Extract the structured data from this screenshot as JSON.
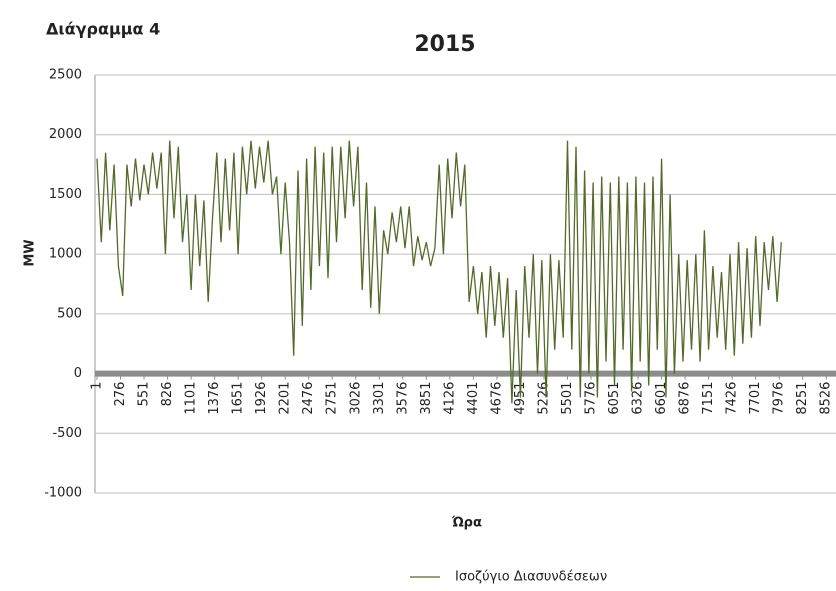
{
  "heading": "Διάγραμμα 4",
  "chart_data": {
    "type": "line",
    "title": "2015",
    "x_label": "Ώρα",
    "y_label": "MW",
    "x": [
      1,
      51,
      101,
      151,
      201,
      251,
      301,
      351,
      401,
      451,
      501,
      551,
      601,
      651,
      701,
      751,
      801,
      851,
      901,
      951,
      1001,
      1051,
      1101,
      1151,
      1201,
      1251,
      1301,
      1351,
      1401,
      1451,
      1501,
      1551,
      1601,
      1651,
      1701,
      1751,
      1801,
      1851,
      1901,
      1951,
      2001,
      2051,
      2101,
      2151,
      2201,
      2251,
      2301,
      2351,
      2401,
      2451,
      2501,
      2551,
      2601,
      2651,
      2701,
      2751,
      2801,
      2851,
      2901,
      2951,
      3001,
      3051,
      3101,
      3151,
      3201,
      3251,
      3301,
      3351,
      3401,
      3451,
      3501,
      3551,
      3601,
      3651,
      3701,
      3751,
      3801,
      3851,
      3901,
      3951,
      4001,
      4051,
      4101,
      4151,
      4201,
      4251,
      4301,
      4351,
      4401,
      4451,
      4501,
      4551,
      4601,
      4651,
      4701,
      4751,
      4801,
      4851,
      4901,
      4951,
      5001,
      5051,
      5101,
      5151,
      5201,
      5251,
      5301,
      5351,
      5401,
      5451,
      5501,
      5551,
      5601,
      5651,
      5701,
      5751,
      5801,
      5851,
      5901,
      5951,
      6001,
      6051,
      6101,
      6151,
      6201,
      6251,
      6301,
      6351,
      6401,
      6451,
      6501,
      6551,
      6601,
      6651,
      6701,
      6751,
      6801,
      6851,
      6901,
      6951,
      7001,
      7051,
      7101,
      7151,
      7201,
      7251,
      7301,
      7351,
      7401,
      7451,
      7501,
      7551,
      7601,
      7651,
      7701,
      7751,
      7801,
      7851,
      7901,
      7951,
      8001
    ],
    "series": [
      {
        "name": "Ισοζύγιο Διασυνδέσεων",
        "color": "#546a2a",
        "values": [
          1800,
          1100,
          1850,
          1200,
          1750,
          900,
          650,
          1750,
          1400,
          1800,
          1450,
          1750,
          1500,
          1850,
          1550,
          1850,
          1000,
          1950,
          1300,
          1900,
          1100,
          1500,
          700,
          1500,
          900,
          1450,
          600,
          1300,
          1850,
          1100,
          1800,
          1200,
          1850,
          1000,
          1900,
          1500,
          1950,
          1550,
          1900,
          1600,
          1950,
          1500,
          1650,
          1000,
          1600,
          1100,
          150,
          1700,
          400,
          1800,
          700,
          1900,
          900,
          1850,
          800,
          1900,
          1100,
          1900,
          1300,
          1950,
          1400,
          1900,
          700,
          1600,
          550,
          1400,
          500,
          1200,
          1000,
          1350,
          1100,
          1400,
          1050,
          1400,
          900,
          1150,
          950,
          1100,
          900,
          1050,
          1750,
          1000,
          1800,
          1300,
          1850,
          1400,
          1750,
          600,
          900,
          500,
          850,
          300,
          900,
          400,
          850,
          300,
          800,
          -250,
          700,
          -200,
          900,
          300,
          1000,
          0,
          950,
          -200,
          1000,
          200,
          950,
          300,
          1950,
          200,
          1900,
          -200,
          1700,
          0,
          1600,
          -200,
          1650,
          100,
          1600,
          -100,
          1650,
          200,
          1600,
          -150,
          1650,
          100,
          1600,
          -100,
          1650,
          200,
          1800,
          -200,
          1500,
          0,
          1000,
          100,
          950,
          200,
          1000,
          100,
          1200,
          200,
          900,
          300,
          850,
          200,
          1000,
          150,
          1100,
          250,
          1050,
          300,
          1150,
          400,
          1100,
          700,
          1150,
          600,
          1100
        ]
      }
    ],
    "xlim": [
      1,
      8640
    ],
    "xticks": [
      1,
      276,
      551,
      826,
      1101,
      1376,
      1651,
      1926,
      2201,
      2476,
      2751,
      3026,
      3301,
      3576,
      3851,
      4126,
      4401,
      4676,
      4951,
      5226,
      5501,
      5776,
      6051,
      6326,
      6601,
      6876,
      7151,
      7426,
      7701,
      7976,
      8251,
      8526
    ],
    "ylim": [
      -1000,
      2500
    ],
    "yticks": [
      -1000,
      -500,
      0,
      500,
      1000,
      1500,
      2000,
      2500
    ],
    "grid": true,
    "legend": "bottom"
  }
}
